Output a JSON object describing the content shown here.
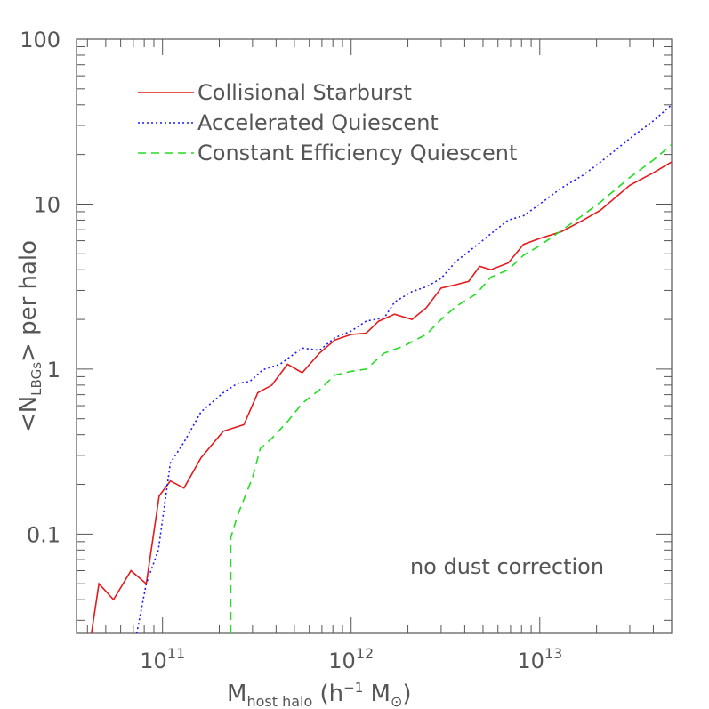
{
  "chart_data": {
    "type": "line",
    "xlabel": {
      "main": "M",
      "sub": "host halo",
      "rest": " (h",
      "sup": "−1",
      "unit": " M",
      "unit_sub": "⊙",
      "close": ")"
    },
    "ylabel": {
      "pre": "<N",
      "sub": "LBGs",
      "post": "> per halo"
    },
    "x_scale": "log",
    "y_scale": "log",
    "xlim": [
      35000000000.0,
      50000000000000.0
    ],
    "ylim": [
      0.025,
      100
    ],
    "x_ticks": [
      {
        "value": 100000000000.0,
        "base": "10",
        "exp": "11"
      },
      {
        "value": 1000000000000.0,
        "base": "10",
        "exp": "12"
      },
      {
        "value": 10000000000000.0,
        "base": "10",
        "exp": "13"
      }
    ],
    "y_ticks": [
      {
        "value": 0.1,
        "label": "0.1"
      },
      {
        "value": 1,
        "label": "1"
      },
      {
        "value": 10,
        "label": "10"
      },
      {
        "value": 100,
        "label": "100"
      }
    ],
    "annotation": "no dust correction",
    "series": [
      {
        "name": "Collisional Starburst",
        "color": "#e41a1c",
        "dash": "",
        "points": [
          [
            42000000000.0,
            0.025
          ],
          [
            46000000000.0,
            0.05
          ],
          [
            55000000000.0,
            0.04
          ],
          [
            68000000000.0,
            0.06
          ],
          [
            82000000000.0,
            0.05
          ],
          [
            96000000000.0,
            0.17
          ],
          [
            110000000000.0,
            0.21
          ],
          [
            130000000000.0,
            0.19
          ],
          [
            160000000000.0,
            0.29
          ],
          [
            210000000000.0,
            0.42
          ],
          [
            270000000000.0,
            0.46
          ],
          [
            320000000000.0,
            0.72
          ],
          [
            380000000000.0,
            0.8
          ],
          [
            460000000000.0,
            1.07
          ],
          [
            550000000000.0,
            0.95
          ],
          [
            680000000000.0,
            1.25
          ],
          [
            820000000000.0,
            1.5
          ],
          [
            1000000000000.0,
            1.62
          ],
          [
            1200000000000.0,
            1.65
          ],
          [
            1400000000000.0,
            1.95
          ],
          [
            1700000000000.0,
            2.15
          ],
          [
            2100000000000.0,
            2.0
          ],
          [
            2500000000000.0,
            2.35
          ],
          [
            3000000000000.0,
            3.1
          ],
          [
            3600000000000.0,
            3.25
          ],
          [
            4200000000000.0,
            3.4
          ],
          [
            4800000000000.0,
            4.2
          ],
          [
            5500000000000.0,
            4.0
          ],
          [
            6800000000000.0,
            4.4
          ],
          [
            8200000000000.0,
            5.7
          ],
          [
            10000000000000.0,
            6.2
          ],
          [
            13000000000000.0,
            6.8
          ],
          [
            17000000000000.0,
            8.0
          ],
          [
            21000000000000.0,
            9.2
          ],
          [
            30000000000000.0,
            13.0
          ],
          [
            40000000000000.0,
            15.5
          ],
          [
            50000000000000.0,
            18.0
          ]
        ]
      },
      {
        "name": "Accelerated Quiescent",
        "color": "#1a1aff",
        "dash": "2,3",
        "points": [
          [
            73000000000.0,
            0.025
          ],
          [
            82000000000.0,
            0.05
          ],
          [
            95000000000.0,
            0.08
          ],
          [
            110000000000.0,
            0.27
          ],
          [
            130000000000.0,
            0.36
          ],
          [
            160000000000.0,
            0.55
          ],
          [
            210000000000.0,
            0.72
          ],
          [
            250000000000.0,
            0.82
          ],
          [
            290000000000.0,
            0.84
          ],
          [
            340000000000.0,
            0.99
          ],
          [
            420000000000.0,
            1.07
          ],
          [
            550000000000.0,
            1.34
          ],
          [
            680000000000.0,
            1.3
          ],
          [
            820000000000.0,
            1.55
          ],
          [
            1000000000000.0,
            1.7
          ],
          [
            1200000000000.0,
            1.95
          ],
          [
            1500000000000.0,
            2.05
          ],
          [
            1700000000000.0,
            2.55
          ],
          [
            2100000000000.0,
            2.95
          ],
          [
            2500000000000.0,
            3.15
          ],
          [
            3000000000000.0,
            3.55
          ],
          [
            3600000000000.0,
            4.5
          ],
          [
            4600000000000.0,
            5.6
          ],
          [
            5500000000000.0,
            6.6
          ],
          [
            6800000000000.0,
            8.0
          ],
          [
            8200000000000.0,
            8.5
          ],
          [
            10000000000000.0,
            10.0
          ],
          [
            13000000000000.0,
            12.5
          ],
          [
            17000000000000.0,
            15.0
          ],
          [
            21000000000000.0,
            18.0
          ],
          [
            30000000000000.0,
            25.0
          ],
          [
            40000000000000.0,
            32.0
          ],
          [
            50000000000000.0,
            40.0
          ]
        ]
      },
      {
        "name": "Constant Efficiency Quiescent",
        "color": "#22dd22",
        "dash": "9,6",
        "points": [
          [
            230000000000.0,
            0.025
          ],
          [
            230000000000.0,
            0.095
          ],
          [
            250000000000.0,
            0.13
          ],
          [
            300000000000.0,
            0.22
          ],
          [
            330000000000.0,
            0.33
          ],
          [
            380000000000.0,
            0.38
          ],
          [
            460000000000.0,
            0.48
          ],
          [
            550000000000.0,
            0.62
          ],
          [
            680000000000.0,
            0.75
          ],
          [
            820000000000.0,
            0.92
          ],
          [
            1000000000000.0,
            0.97
          ],
          [
            1200000000000.0,
            1.0
          ],
          [
            1500000000000.0,
            1.25
          ],
          [
            1900000000000.0,
            1.38
          ],
          [
            2500000000000.0,
            1.62
          ],
          [
            3000000000000.0,
            2.0
          ],
          [
            3600000000000.0,
            2.4
          ],
          [
            4600000000000.0,
            2.85
          ],
          [
            5500000000000.0,
            3.6
          ],
          [
            6800000000000.0,
            4.0
          ],
          [
            8200000000000.0,
            4.9
          ],
          [
            10000000000000.0,
            5.6
          ],
          [
            13000000000000.0,
            6.9
          ],
          [
            17000000000000.0,
            8.6
          ],
          [
            21000000000000.0,
            10.3
          ],
          [
            30000000000000.0,
            14.5
          ],
          [
            40000000000000.0,
            18.5
          ],
          [
            50000000000000.0,
            23.0
          ]
        ]
      }
    ]
  }
}
